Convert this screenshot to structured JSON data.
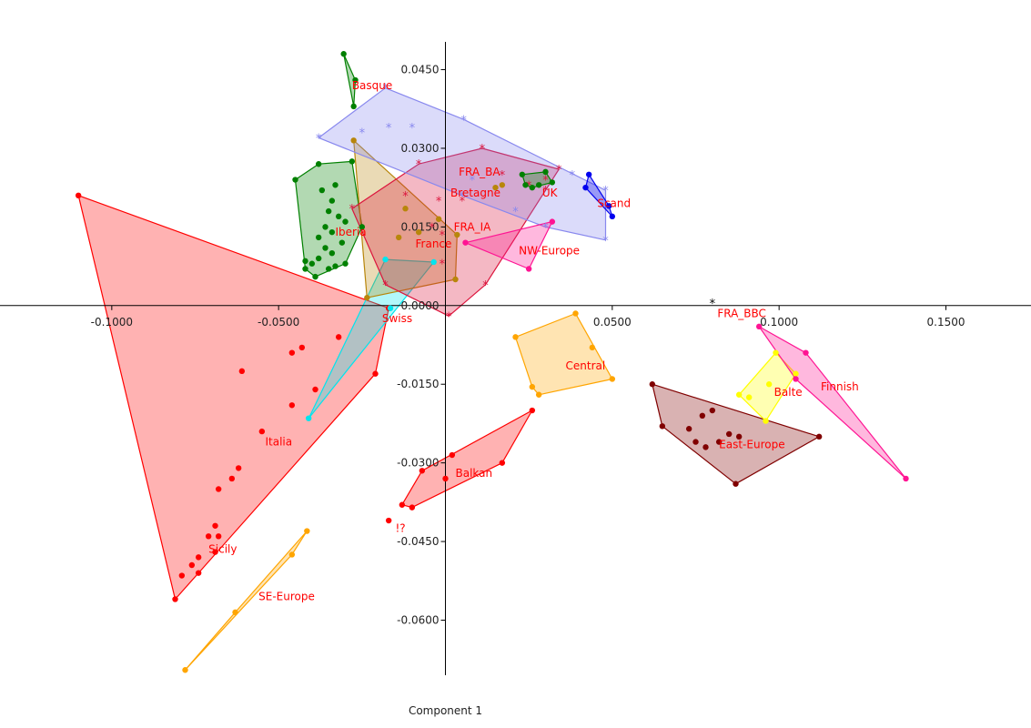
{
  "chart_data": {
    "type": "scatter",
    "xlabel": "Component 1",
    "ylabel": "",
    "xlim": [
      -0.1335,
      0.1755
    ],
    "ylim": [
      -0.0705,
      0.0503
    ],
    "x_ticks": [
      -0.1,
      -0.05,
      0.05,
      0.1,
      0.15
    ],
    "y_ticks": [
      0.045,
      0.03,
      0.015,
      -0.015,
      -0.03,
      -0.045,
      -0.06
    ],
    "x_tick_labels": [
      "-0.1000",
      "-0.0500",
      "0.0500",
      "0.1000",
      "0.1500"
    ],
    "y_tick_labels": [
      "0.0450",
      "0.0300",
      "0.0150",
      "-0.0150",
      "-0.0300",
      "-0.0450",
      "-0.0600"
    ],
    "origin_label": "0.0000",
    "grid": false,
    "series": [
      {
        "name": "Italia",
        "color": "#ff0000",
        "marker": "dot",
        "hull": true,
        "label": {
          "text": "Italia",
          "x": -0.054,
          "y": -0.026
        },
        "points": [
          [
            -0.11,
            0.021
          ],
          [
            -0.081,
            -0.056
          ],
          [
            -0.017,
            -0.0005
          ],
          [
            -0.021,
            -0.013
          ],
          [
            -0.032,
            -0.006
          ],
          [
            -0.039,
            -0.016
          ],
          [
            -0.043,
            -0.008
          ],
          [
            -0.046,
            -0.009
          ],
          [
            -0.046,
            -0.019
          ],
          [
            -0.055,
            -0.024
          ],
          [
            -0.061,
            -0.0125
          ],
          [
            -0.062,
            -0.031
          ],
          [
            -0.064,
            -0.033
          ],
          [
            -0.068,
            -0.035
          ],
          [
            -0.071,
            -0.044
          ],
          [
            -0.069,
            -0.047
          ],
          [
            -0.074,
            -0.048
          ],
          [
            -0.074,
            -0.051
          ],
          [
            -0.079,
            -0.0515
          ],
          [
            -0.068,
            -0.044
          ]
        ]
      },
      {
        "name": "Sicily",
        "color": "#ff0000",
        "marker": "dot",
        "hull": false,
        "label": {
          "text": "Sicily",
          "x": -0.071,
          "y": -0.0465
        },
        "points": [
          [
            -0.069,
            -0.042
          ],
          [
            -0.076,
            -0.0495
          ]
        ]
      },
      {
        "name": "SE-Europe",
        "color": "#ffa500",
        "marker": "dot",
        "hull": true,
        "label": {
          "text": "SE-Europe",
          "x": -0.056,
          "y": -0.0555
        },
        "points": [
          [
            -0.0415,
            -0.043
          ],
          [
            -0.046,
            -0.0475
          ],
          [
            -0.063,
            -0.0585
          ],
          [
            -0.078,
            -0.0695
          ]
        ]
      },
      {
        "name": "Swiss",
        "color": "#00e5ee",
        "marker": "dot",
        "hull": true,
        "label": {
          "text": "Swiss",
          "x": -0.019,
          "y": -0.0025
        },
        "points": [
          [
            -0.018,
            0.0088
          ],
          [
            -0.0035,
            0.0083
          ],
          [
            -0.0165,
            -0.0005
          ],
          [
            -0.041,
            -0.0215
          ]
        ]
      },
      {
        "name": "Iberia",
        "color": "#008000",
        "marker": "dot",
        "hull": true,
        "label": {
          "text": "Iberia",
          "x": -0.033,
          "y": 0.014
        },
        "points": [
          [
            -0.045,
            0.024
          ],
          [
            -0.038,
            0.027
          ],
          [
            -0.028,
            0.0275
          ],
          [
            -0.025,
            0.015
          ],
          [
            -0.03,
            0.008
          ],
          [
            -0.039,
            0.0055
          ],
          [
            -0.042,
            0.007
          ],
          [
            -0.042,
            0.0085
          ],
          [
            -0.037,
            0.022
          ],
          [
            -0.034,
            0.02
          ],
          [
            -0.033,
            0.023
          ],
          [
            -0.035,
            0.018
          ],
          [
            -0.032,
            0.017
          ],
          [
            -0.03,
            0.016
          ],
          [
            -0.036,
            0.015
          ],
          [
            -0.034,
            0.014
          ],
          [
            -0.038,
            0.013
          ],
          [
            -0.036,
            0.011
          ],
          [
            -0.034,
            0.01
          ],
          [
            -0.031,
            0.012
          ],
          [
            -0.038,
            0.009
          ],
          [
            -0.035,
            0.007
          ],
          [
            -0.033,
            0.0075
          ],
          [
            -0.04,
            0.008
          ]
        ]
      },
      {
        "name": "Basque",
        "color": "#008000",
        "marker": "dot",
        "hull": true,
        "label": {
          "text": "Basque",
          "x": -0.028,
          "y": 0.042
        },
        "points": [
          [
            -0.0305,
            0.048
          ],
          [
            -0.0275,
            0.038
          ],
          [
            -0.027,
            0.043
          ]
        ]
      },
      {
        "name": "France",
        "color": "#b8860b",
        "marker": "dot",
        "hull": true,
        "label": {
          "text": "France",
          "x": -0.009,
          "y": 0.0118
        },
        "points": [
          [
            -0.0275,
            0.0315
          ],
          [
            -0.002,
            0.0165
          ],
          [
            0.0035,
            0.0135
          ],
          [
            0.003,
            0.005
          ],
          [
            -0.0235,
            0.0015
          ],
          [
            -0.012,
            0.0185
          ],
          [
            -0.014,
            0.013
          ],
          [
            -0.008,
            0.014
          ]
        ]
      },
      {
        "name": "FRA_IA",
        "color": "#dc143c",
        "marker": "star",
        "hull": true,
        "label": {
          "text": "FRA_IA",
          "x": 0.0025,
          "y": 0.015
        },
        "points": [
          [
            -0.008,
            0.027
          ],
          [
            0.011,
            0.03
          ],
          [
            0.034,
            0.026
          ],
          [
            0.03,
            0.022
          ],
          [
            0.012,
            0.004
          ],
          [
            0.001,
            -0.002
          ],
          [
            -0.018,
            0.004
          ],
          [
            -0.028,
            0.0185
          ],
          [
            -0.012,
            0.021
          ],
          [
            -0.002,
            0.02
          ],
          [
            0.005,
            0.02
          ],
          [
            -0.004,
            0.015
          ],
          [
            -0.001,
            0.008
          ],
          [
            0.017,
            0.025
          ],
          [
            0.025,
            0.023
          ],
          [
            0.03,
            0.024
          ],
          [
            -0.001,
            0.0135
          ]
        ]
      },
      {
        "name": "FRA_BA",
        "color": "#8888ee",
        "marker": "star",
        "hull": true,
        "label": {
          "text": "FRA_BA",
          "x": 0.004,
          "y": 0.0255
        },
        "points": [
          [
            -0.038,
            0.032
          ],
          [
            -0.018,
            0.0415
          ],
          [
            0.0055,
            0.0355
          ],
          [
            0.038,
            0.025
          ],
          [
            0.048,
            0.022
          ],
          [
            0.048,
            0.0125
          ],
          [
            0.03,
            0.015
          ],
          [
            0.005,
            0.021
          ],
          [
            -0.025,
            0.033
          ],
          [
            -0.017,
            0.034
          ],
          [
            -0.01,
            0.034
          ],
          [
            0.021,
            0.018
          ],
          [
            0.008,
            0.024
          ]
        ]
      },
      {
        "name": "Bretagne",
        "color": "#b8860b",
        "marker": "dot",
        "hull": false,
        "label": {
          "text": "Bretagne",
          "x": 0.0015,
          "y": 0.0215
        },
        "points": [
          [
            0.015,
            0.0225
          ],
          [
            0.017,
            0.023
          ]
        ]
      },
      {
        "name": "UK",
        "color": "#008000",
        "marker": "dot",
        "hull": true,
        "label": {
          "text": "UK",
          "x": 0.029,
          "y": 0.0215
        },
        "points": [
          [
            0.023,
            0.025
          ],
          [
            0.03,
            0.0255
          ],
          [
            0.032,
            0.0235
          ],
          [
            0.026,
            0.0225
          ],
          [
            0.024,
            0.023
          ],
          [
            0.028,
            0.023
          ]
        ]
      },
      {
        "name": "Scand",
        "color": "#0000ee",
        "marker": "dot",
        "hull": true,
        "label": {
          "text": "Scand",
          "x": 0.0455,
          "y": 0.0195
        },
        "points": [
          [
            0.043,
            0.025
          ],
          [
            0.049,
            0.019
          ],
          [
            0.05,
            0.017
          ],
          [
            0.042,
            0.0225
          ]
        ]
      },
      {
        "name": "NW-Europe",
        "color": "#ff1493",
        "marker": "dot",
        "hull": true,
        "label": {
          "text": "NW-Europe",
          "x": 0.022,
          "y": 0.0105
        },
        "points": [
          [
            0.006,
            0.012
          ],
          [
            0.032,
            0.016
          ],
          [
            0.025,
            0.007
          ]
        ]
      },
      {
        "name": "Central",
        "color": "#ffa500",
        "marker": "dot",
        "hull": true,
        "label": {
          "text": "Central",
          "x": 0.036,
          "y": -0.0115
        },
        "points": [
          [
            0.021,
            -0.006
          ],
          [
            0.039,
            -0.0015
          ],
          [
            0.05,
            -0.014
          ],
          [
            0.028,
            -0.017
          ],
          [
            0.044,
            -0.008
          ],
          [
            0.026,
            -0.0155
          ]
        ]
      },
      {
        "name": "Balkan",
        "color": "#ff0000",
        "marker": "dot",
        "hull": true,
        "label": {
          "text": "Balkan",
          "x": 0.003,
          "y": -0.032
        },
        "points": [
          [
            0.026,
            -0.02
          ],
          [
            0.017,
            -0.03
          ],
          [
            0.002,
            -0.0285
          ],
          [
            -0.01,
            -0.0385
          ],
          [
            -0.013,
            -0.038
          ],
          [
            -0.007,
            -0.0315
          ],
          [
            0.0,
            -0.033
          ]
        ]
      },
      {
        "name": "East-Europe",
        "color": "#800000",
        "marker": "dot",
        "hull": true,
        "label": {
          "text": "East-Europe",
          "x": 0.082,
          "y": -0.0265
        },
        "points": [
          [
            0.062,
            -0.015
          ],
          [
            0.112,
            -0.025
          ],
          [
            0.087,
            -0.034
          ],
          [
            0.065,
            -0.023
          ],
          [
            0.073,
            -0.0235
          ],
          [
            0.075,
            -0.026
          ],
          [
            0.078,
            -0.027
          ],
          [
            0.077,
            -0.021
          ],
          [
            0.08,
            -0.02
          ],
          [
            0.085,
            -0.0245
          ],
          [
            0.088,
            -0.025
          ],
          [
            0.082,
            -0.026
          ]
        ]
      },
      {
        "name": "Balte",
        "color": "#ffff00",
        "marker": "dot",
        "hull": true,
        "label": {
          "text": "Balte",
          "x": 0.0985,
          "y": -0.0165
        },
        "points": [
          [
            0.099,
            -0.009
          ],
          [
            0.105,
            -0.013
          ],
          [
            0.096,
            -0.022
          ],
          [
            0.088,
            -0.017
          ],
          [
            0.091,
            -0.0175
          ],
          [
            0.097,
            -0.015
          ]
        ]
      },
      {
        "name": "Finnish",
        "color": "#ff1493",
        "marker": "dot",
        "hull": true,
        "label": {
          "text": "Finnish",
          "x": 0.1125,
          "y": -0.0155
        },
        "points": [
          [
            0.094,
            -0.004
          ],
          [
            0.108,
            -0.009
          ],
          [
            0.138,
            -0.033
          ],
          [
            0.105,
            -0.014
          ]
        ]
      },
      {
        "name": "!?",
        "color": "#ff0000",
        "marker": "dot",
        "hull": false,
        "label": {
          "text": "!?",
          "x": -0.015,
          "y": -0.0425
        },
        "points": [
          [
            -0.017,
            -0.041
          ]
        ]
      },
      {
        "name": "FRA_BBC",
        "color": "#000000",
        "marker": "star",
        "hull": false,
        "label": {
          "text": "FRA_BBC",
          "x": 0.0815,
          "y": -0.0015
        },
        "points": [
          [
            0.08,
            0.0005
          ]
        ]
      }
    ]
  }
}
